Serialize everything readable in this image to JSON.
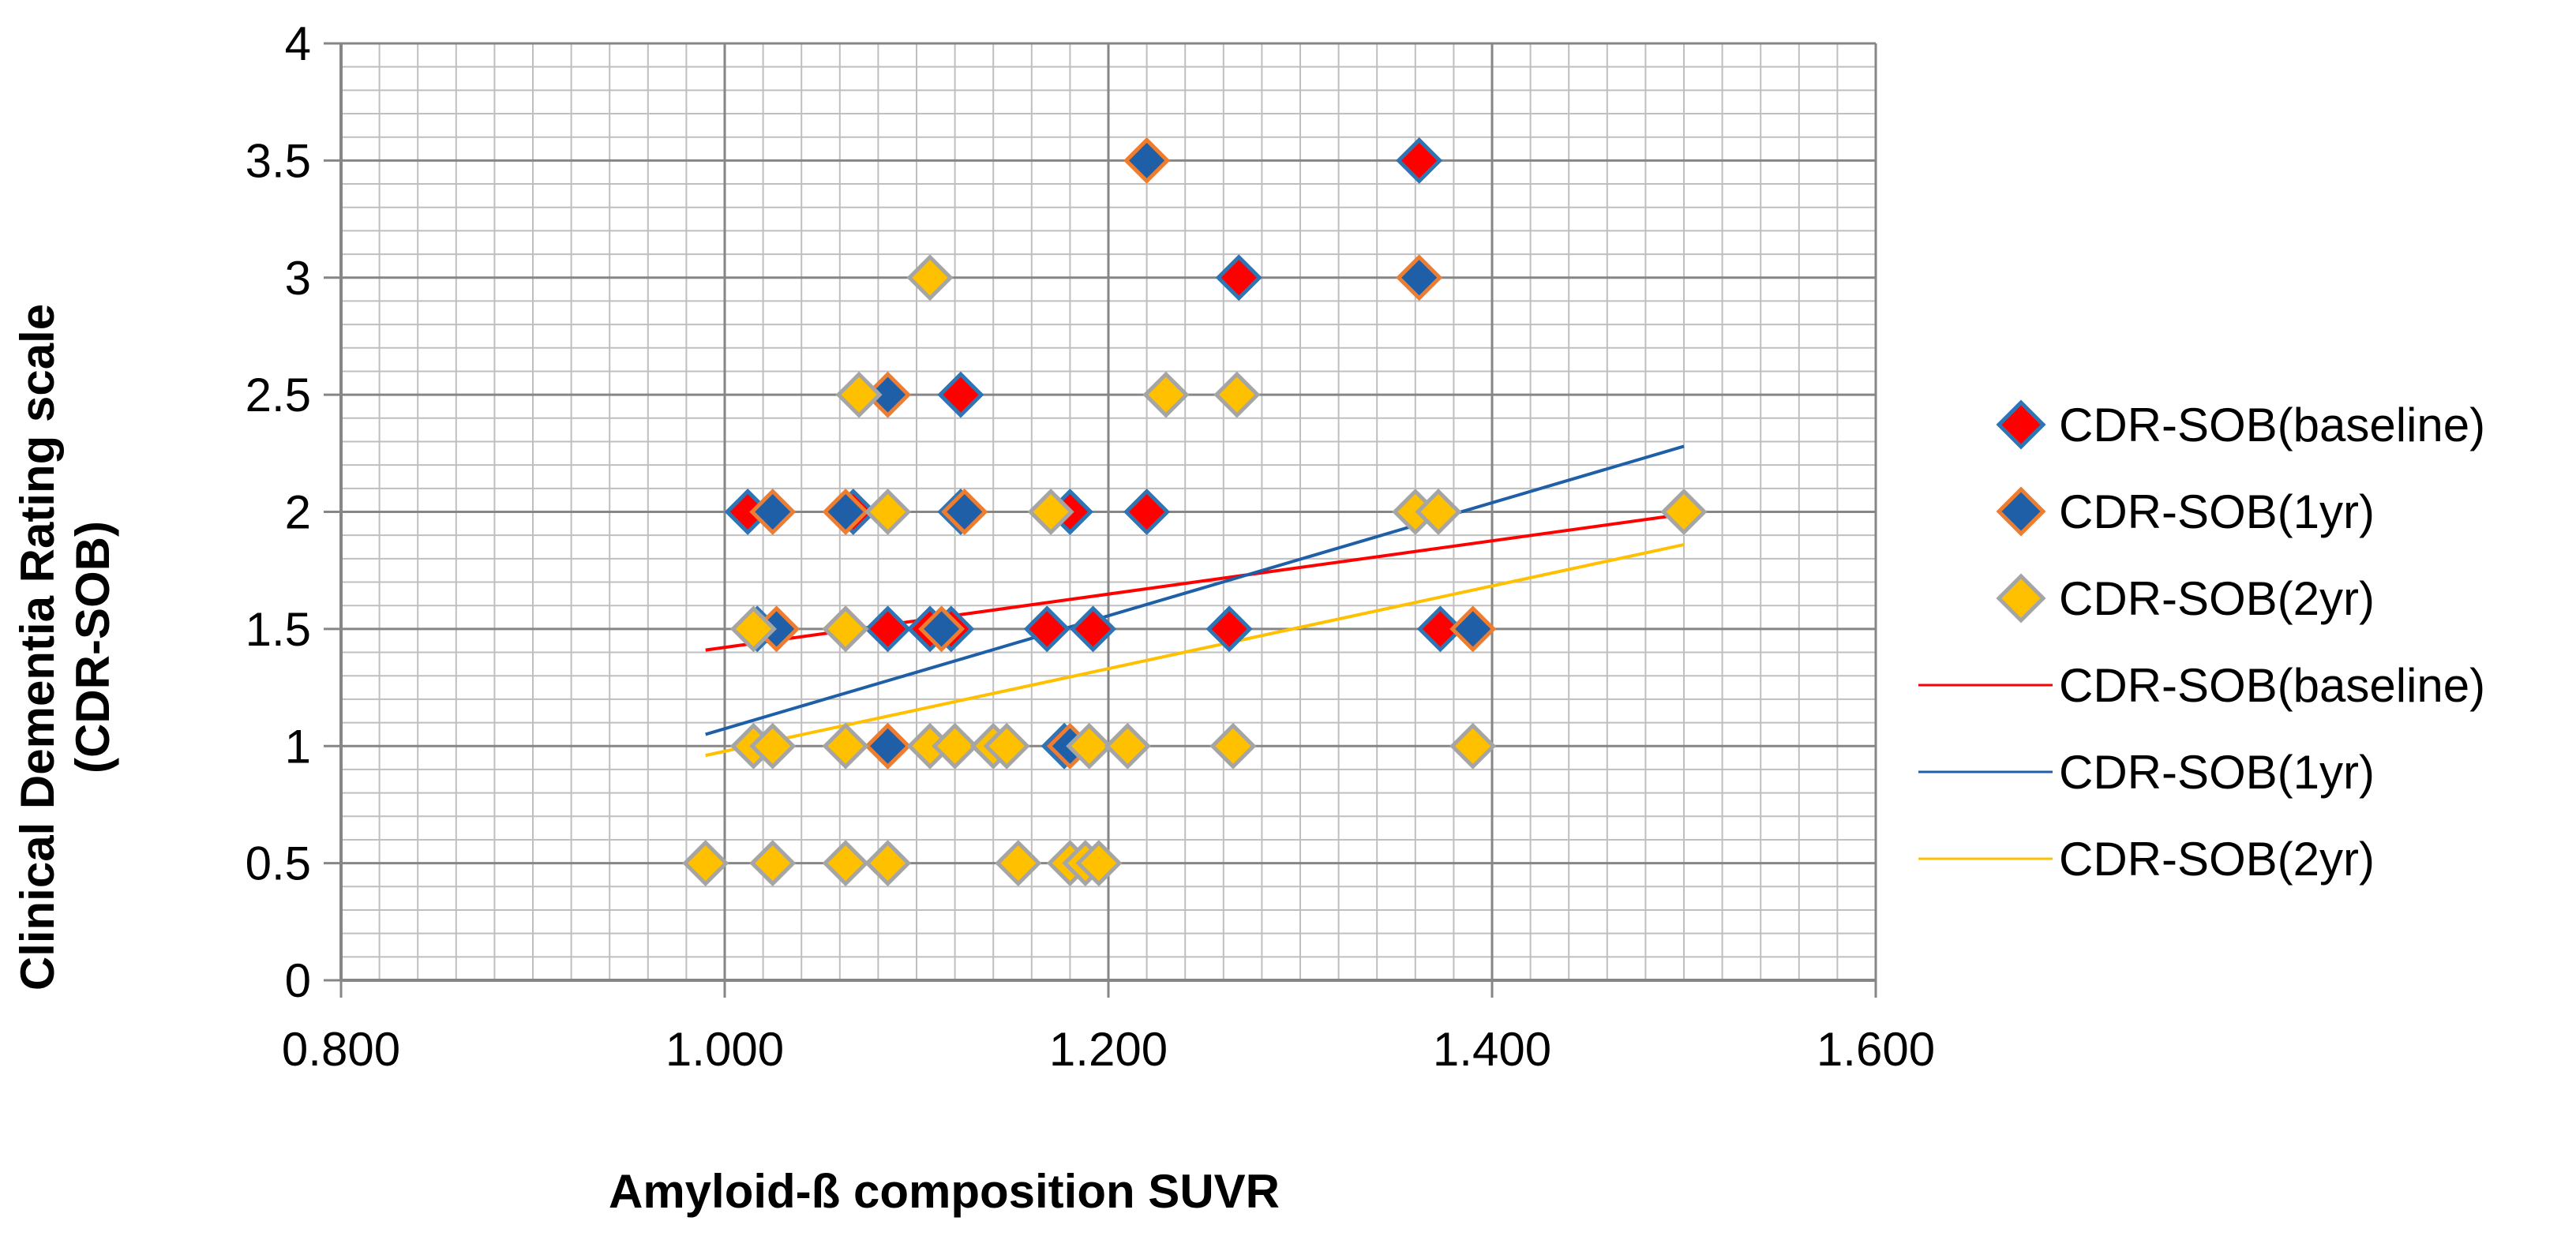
{
  "chart_data": {
    "type": "scatter",
    "title": "",
    "xlabel": "Amyloid-ß composition SUVR",
    "ylabel_line1": "Clinical Dementia Rating scale",
    "ylabel_line2": "(CDR-SOB)",
    "xlim": [
      0.8,
      1.6
    ],
    "ylim": [
      0,
      4
    ],
    "x_ticks": [
      0.8,
      1.0,
      1.2,
      1.4,
      1.6
    ],
    "x_tick_labels": [
      "0.800",
      "1.000",
      "1.200",
      "1.400",
      "1.600"
    ],
    "y_ticks": [
      0,
      0.5,
      1,
      1.5,
      2,
      2.5,
      3,
      3.5,
      4
    ],
    "y_tick_labels": [
      "0",
      "0.5",
      "1",
      "1.5",
      "2",
      "2.5",
      "3",
      "3.5",
      "4"
    ],
    "grid": true,
    "legend_position": "right",
    "series": [
      {
        "name": "CDR-SOB(baseline)",
        "fill": "#FF0000",
        "edge": "#2E75B6",
        "points": [
          [
            1.362,
            3.5
          ],
          [
            1.268,
            3.0
          ],
          [
            1.123,
            2.5
          ],
          [
            1.012,
            2.0
          ],
          [
            1.067,
            2.0
          ],
          [
            1.123,
            2.0
          ],
          [
            1.18,
            2.0
          ],
          [
            1.22,
            2.0
          ],
          [
            1.017,
            1.5
          ],
          [
            1.085,
            1.5
          ],
          [
            1.107,
            1.5
          ],
          [
            1.118,
            1.5
          ],
          [
            1.168,
            1.5
          ],
          [
            1.192,
            1.5
          ],
          [
            1.263,
            1.5
          ],
          [
            1.373,
            1.5
          ],
          [
            1.085,
            1.0
          ],
          [
            1.177,
            1.0
          ]
        ]
      },
      {
        "name": "CDR-SOB(1yr)",
        "fill": "#1F5FA8",
        "edge": "#ED7D31",
        "points": [
          [
            1.22,
            3.5
          ],
          [
            1.362,
            3.0
          ],
          [
            1.085,
            2.5
          ],
          [
            1.025,
            2.0
          ],
          [
            1.063,
            2.0
          ],
          [
            1.125,
            2.0
          ],
          [
            1.027,
            1.5
          ],
          [
            1.063,
            1.5
          ],
          [
            1.113,
            1.5
          ],
          [
            1.39,
            1.5
          ],
          [
            1.085,
            1.0
          ],
          [
            1.18,
            1.0
          ]
        ]
      },
      {
        "name": "CDR-SOB(2yr)",
        "fill": "#FFC000",
        "edge": "#A5A5A5",
        "points": [
          [
            1.107,
            3.0
          ],
          [
            1.07,
            2.5
          ],
          [
            1.23,
            2.5
          ],
          [
            1.267,
            2.5
          ],
          [
            1.085,
            2.0
          ],
          [
            1.17,
            2.0
          ],
          [
            1.36,
            2.0
          ],
          [
            1.372,
            2.0
          ],
          [
            1.5,
            2.0
          ],
          [
            1.015,
            1.5
          ],
          [
            1.063,
            1.5
          ],
          [
            1.015,
            1.0
          ],
          [
            1.025,
            1.0
          ],
          [
            1.063,
            1.0
          ],
          [
            1.107,
            1.0
          ],
          [
            1.12,
            1.0
          ],
          [
            1.14,
            1.0
          ],
          [
            1.147,
            1.0
          ],
          [
            1.19,
            1.0
          ],
          [
            1.21,
            1.0
          ],
          [
            1.265,
            1.0
          ],
          [
            1.39,
            1.0
          ],
          [
            0.99,
            0.5
          ],
          [
            1.025,
            0.5
          ],
          [
            1.063,
            0.5
          ],
          [
            1.085,
            0.5
          ],
          [
            1.153,
            0.5
          ],
          [
            1.18,
            0.5
          ],
          [
            1.188,
            0.5
          ],
          [
            1.195,
            0.5
          ]
        ]
      }
    ],
    "trendlines": [
      {
        "name": "CDR-SOB(baseline)",
        "color": "#FF0000",
        "x": [
          0.99,
          1.5
        ],
        "y": [
          1.41,
          1.99
        ]
      },
      {
        "name": "CDR-SOB(1yr)",
        "color": "#1F5FA8",
        "x": [
          0.99,
          1.5
        ],
        "y": [
          1.05,
          2.28
        ]
      },
      {
        "name": "CDR-SOB(2yr)",
        "color": "#FFC000",
        "x": [
          0.99,
          1.5
        ],
        "y": [
          0.96,
          1.86
        ]
      }
    ]
  }
}
